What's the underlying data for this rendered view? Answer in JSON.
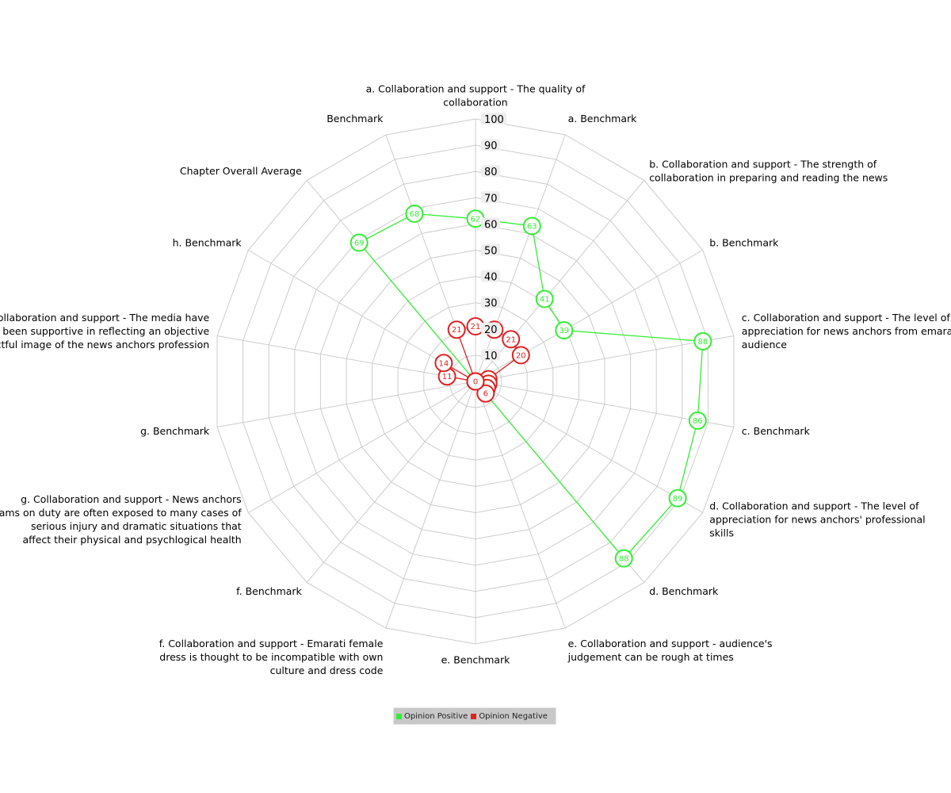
{
  "chart_data": {
    "type": "radar",
    "title": "",
    "rlim": [
      0,
      100
    ],
    "r_ticks": [
      10,
      20,
      30,
      40,
      50,
      60,
      70,
      80,
      90,
      100
    ],
    "grid": true,
    "legend": "bottom-center",
    "axes": [
      "a. Collaboration and support - The quality of collaboration",
      "a. Benchmark",
      "b. Collaboration and support - The strength of collaboration in preparing and reading the news",
      "b. Benchmark",
      "c. Collaboration and support - The level of appreciation for news anchors from emarati audience",
      "c. Benchmark",
      "d. Collaboration and support - The level of appreciation for news anchors' professional skills",
      "d. Benchmark",
      "e. Collaboration and support - audience's judgement can be rough at times",
      "e. Benchmark",
      "f. Collaboration and support - Emarati female dress is thought to be incompatible with own culture and dress code",
      "f. Benchmark",
      "g. Collaboration and support - News anchors teams on duty are often exposed to many cases of serious injury and dramatic situations that affect their physical and psychlogical health",
      "g. Benchmark",
      "h. Collaboration and support - The media have not been supportive in reflecting an objective respectful image of the news anchors profession",
      "h. Benchmark",
      "Chapter Overall Average",
      "Benchmark"
    ],
    "series": [
      {
        "name": "Opinion Positive",
        "color": "#33ee33",
        "values": [
          62,
          63,
          41,
          39,
          88,
          86,
          89,
          88,
          0,
          0,
          0,
          0,
          0,
          0,
          0,
          0,
          69,
          68
        ]
      },
      {
        "name": "Opinion Negative",
        "color": "#dd2222",
        "values": [
          21,
          21,
          21,
          20,
          5,
          5,
          5,
          6,
          0,
          0,
          0,
          0,
          0,
          0,
          11,
          14,
          0,
          21
        ]
      }
    ]
  }
}
